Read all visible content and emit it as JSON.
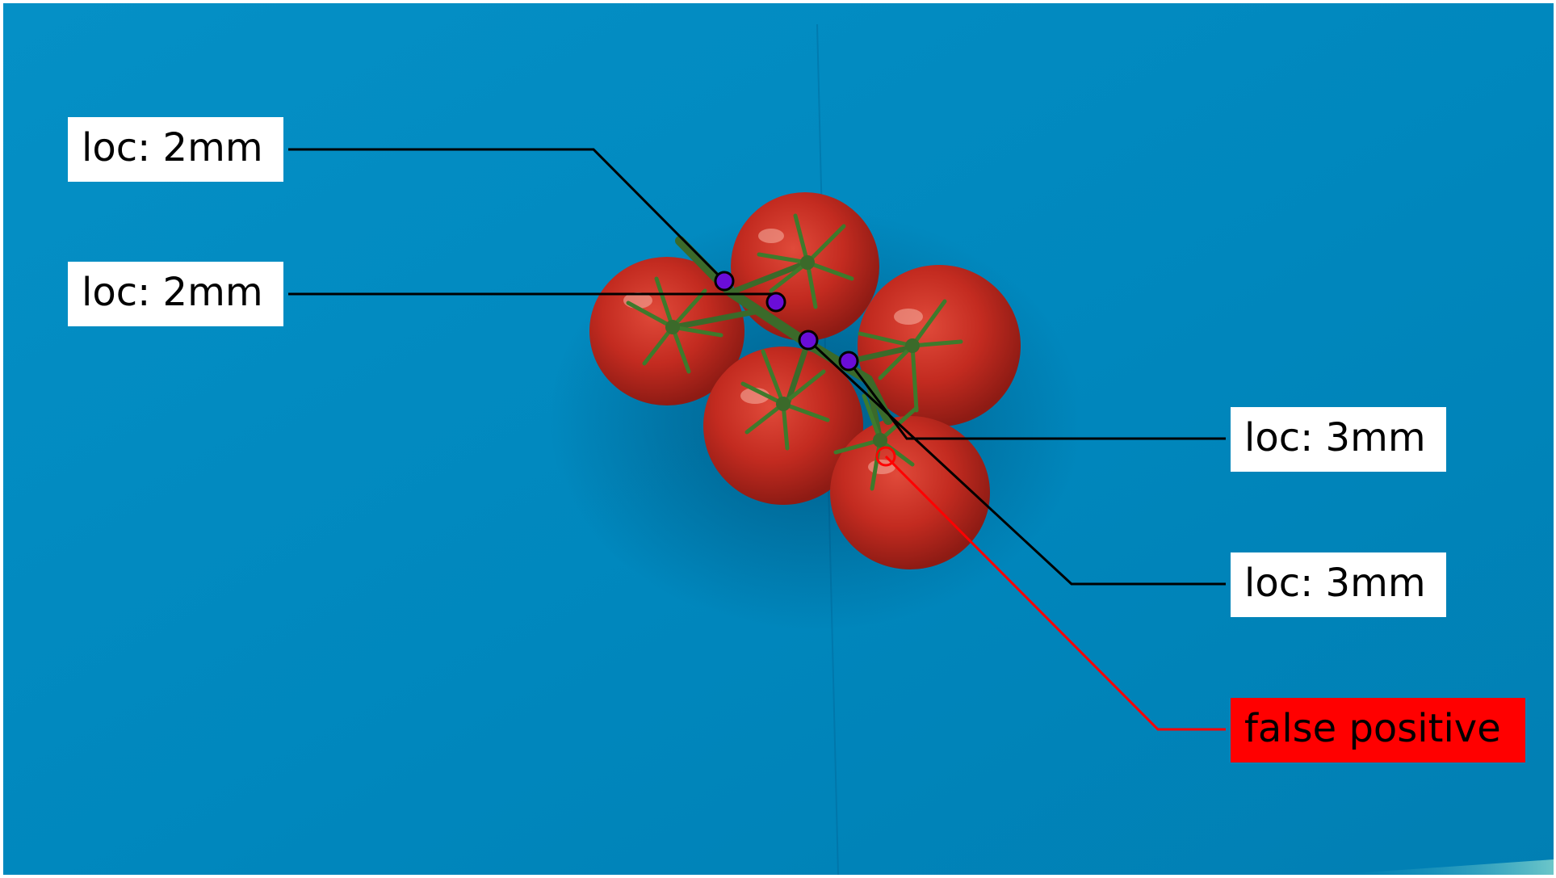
{
  "image": {
    "background_color": "#0289bf",
    "subject": "tomato-vine-cluster",
    "tomato_color": "#b3261e",
    "stem_color": "#3b6a2a"
  },
  "annotations": [
    {
      "text": "loc: 2mm",
      "kind": "detection",
      "box_color": "#ffffff",
      "text_color": "#000000",
      "line_color": "#000000"
    },
    {
      "text": "loc: 2mm",
      "kind": "detection",
      "box_color": "#ffffff",
      "text_color": "#000000",
      "line_color": "#000000"
    },
    {
      "text": "loc: 3mm",
      "kind": "detection",
      "box_color": "#ffffff",
      "text_color": "#000000",
      "line_color": "#000000"
    },
    {
      "text": "loc: 3mm",
      "kind": "detection",
      "box_color": "#ffffff",
      "text_color": "#000000",
      "line_color": "#000000"
    },
    {
      "text": "false positive",
      "kind": "false-positive",
      "box_color": "#ff0000",
      "text_color": "#000000",
      "line_color": "#ff0000"
    }
  ],
  "marker_colors": {
    "detection_fill": "#6a0dd8",
    "detection_stroke": "#000000",
    "false_positive_stroke": "#ff0000"
  }
}
